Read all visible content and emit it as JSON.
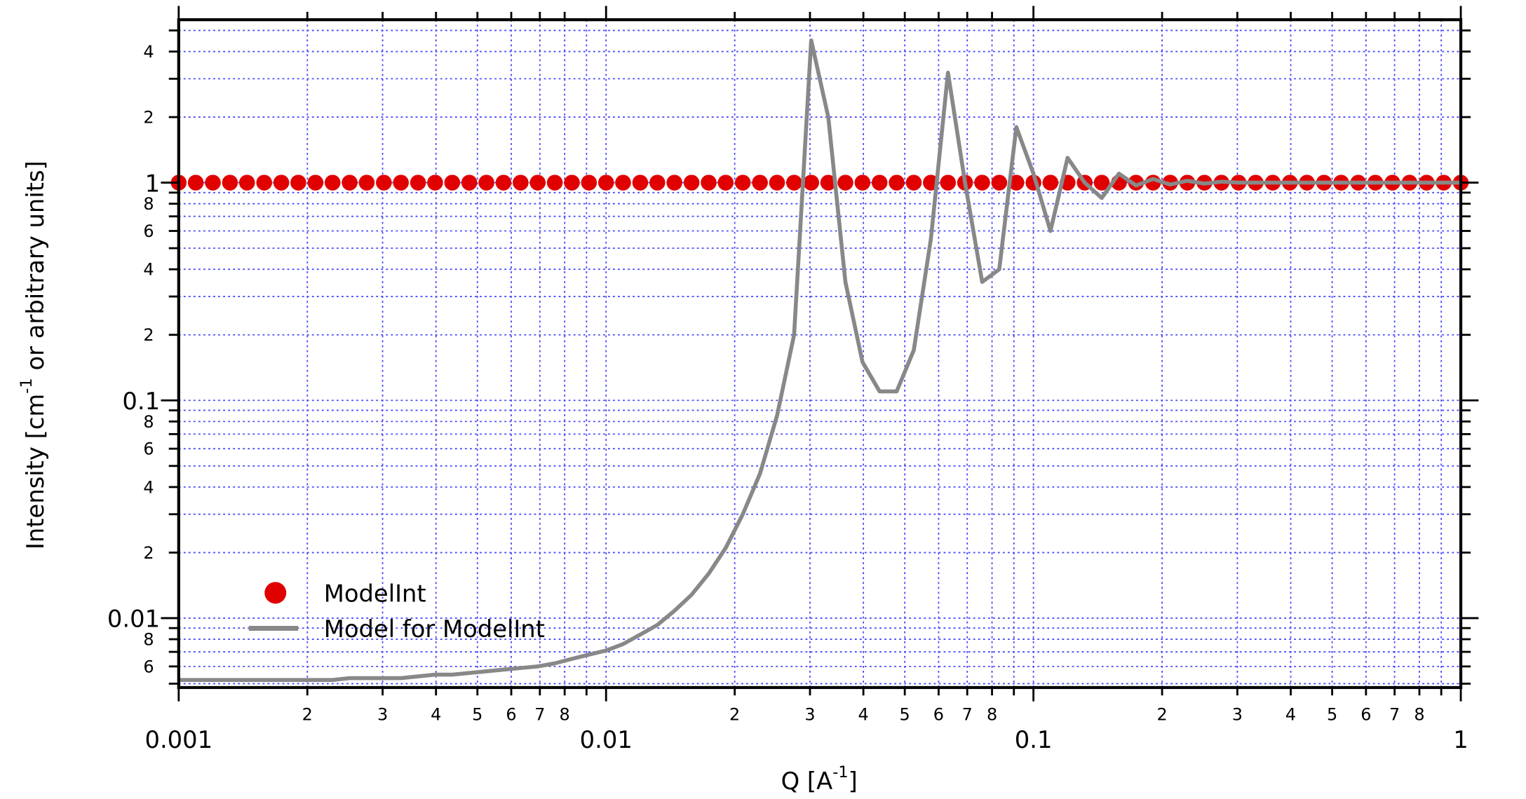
{
  "chart_data": {
    "type": "scatter-line",
    "x_label": {
      "text": "Q [A",
      "sup": "-1",
      "end": "]"
    },
    "y_label": {
      "text": "Intensity [cm",
      "sup": "-1",
      "end": " or arbitrary units]"
    },
    "log_x": true,
    "log_y": true,
    "grid": true,
    "legend": "lower left",
    "xlim": [
      0.001,
      1
    ],
    "ylim": [
      0.0048,
      5.6
    ],
    "xticks": [
      0.001,
      {
        "value": 0.002,
        "label": "2"
      },
      {
        "value": 0.003,
        "label": "3"
      },
      {
        "value": 0.004,
        "label": "4"
      },
      {
        "value": 0.005,
        "label": "5"
      },
      {
        "value": 0.006,
        "label": "6"
      },
      {
        "value": 0.007,
        "label": "7"
      },
      {
        "value": 0.008,
        "label": "8"
      },
      0.01,
      {
        "value": 0.02,
        "label": "2"
      },
      {
        "value": 0.03,
        "label": "3"
      },
      {
        "value": 0.04,
        "label": "4"
      },
      {
        "value": 0.05,
        "label": "5"
      },
      {
        "value": 0.06,
        "label": "6"
      },
      {
        "value": 0.07,
        "label": "7"
      },
      {
        "value": 0.08,
        "label": "8"
      },
      0.1,
      {
        "value": 0.2,
        "label": "2"
      },
      {
        "value": 0.3,
        "label": "3"
      },
      {
        "value": 0.4,
        "label": "4"
      },
      {
        "value": 0.5,
        "label": "5"
      },
      {
        "value": 0.6,
        "label": "6"
      },
      {
        "value": 0.7,
        "label": "7"
      },
      {
        "value": 0.8,
        "label": "8"
      },
      1
    ],
    "xticks_minor": [
      0.009,
      0.09,
      0.9
    ],
    "yticks": [
      {
        "value": 0.006,
        "label": "6"
      },
      {
        "value": 0.008,
        "label": "8"
      },
      0.01,
      {
        "value": 0.02,
        "label": "2"
      },
      {
        "value": 0.04,
        "label": "4"
      },
      {
        "value": 0.06,
        "label": "6"
      },
      {
        "value": 0.08,
        "label": "8"
      },
      0.1,
      {
        "value": 0.2,
        "label": "2"
      },
      {
        "value": 0.4,
        "label": "4"
      },
      {
        "value": 0.6,
        "label": "6"
      },
      {
        "value": 0.8,
        "label": "8"
      },
      1,
      {
        "value": 2,
        "label": "2"
      },
      {
        "value": 4,
        "label": "4"
      }
    ],
    "yticks_minor": [
      0.005,
      0.007,
      0.009,
      0.03,
      0.05,
      0.07,
      0.09,
      0.3,
      0.5,
      0.7,
      0.9,
      3,
      5
    ],
    "x": [
      0.001,
      0.001096,
      0.001202,
      0.001318,
      0.001445,
      0.001585,
      0.001738,
      0.001905,
      0.002089,
      0.002291,
      0.002512,
      0.002754,
      0.00302,
      0.003311,
      0.003631,
      0.003981,
      0.004365,
      0.004786,
      0.005248,
      0.005754,
      0.00631,
      0.006918,
      0.007586,
      0.008318,
      0.00912,
      0.01,
      0.01096,
      0.01202,
      0.01318,
      0.01445,
      0.01585,
      0.01738,
      0.01905,
      0.02089,
      0.02291,
      0.02512,
      0.02754,
      0.0302,
      0.03311,
      0.03631,
      0.03981,
      0.04365,
      0.04786,
      0.05248,
      0.05754,
      0.0631,
      0.06918,
      0.07586,
      0.08318,
      0.0912,
      0.1,
      0.1096,
      0.1202,
      0.1318,
      0.1445,
      0.1585,
      0.1738,
      0.1905,
      0.2089,
      0.2291,
      0.2512,
      0.2754,
      0.302,
      0.3311,
      0.3631,
      0.3981,
      0.4365,
      0.4786,
      0.5248,
      0.5754,
      0.631,
      0.6918,
      0.7586,
      0.8318,
      0.912,
      1
    ],
    "series": [
      {
        "name": "ModelInt",
        "kind": "markers",
        "color": "#e00000",
        "values": [
          1,
          1,
          1,
          1,
          1,
          1,
          1,
          1,
          1,
          1,
          1,
          1,
          1,
          1,
          1,
          1,
          1,
          1,
          1,
          1,
          1,
          1,
          1,
          1,
          1,
          1,
          1,
          1,
          1,
          1,
          1,
          1,
          1,
          1,
          1,
          1,
          1,
          1,
          1,
          1,
          1,
          1,
          1,
          1,
          1,
          1,
          1,
          1,
          1,
          1,
          1,
          1,
          1,
          1,
          1,
          1,
          1,
          1,
          1,
          1,
          1,
          1,
          1,
          1,
          1,
          1,
          1,
          1,
          1,
          1,
          1,
          1,
          1,
          1,
          1,
          1
        ]
      },
      {
        "name": "Model for ModelInt",
        "kind": "line",
        "color": "#888888",
        "values": [
          0.0052,
          0.0052,
          0.0052,
          0.0052,
          0.0052,
          0.0052,
          0.0052,
          0.0052,
          0.0052,
          0.0052,
          0.0053,
          0.0053,
          0.0053,
          0.0053,
          0.0054,
          0.0055,
          0.0055,
          0.0056,
          0.0057,
          0.0058,
          0.0059,
          0.006,
          0.0062,
          0.0065,
          0.0068,
          0.0071,
          0.0076,
          0.0084,
          0.0093,
          0.0108,
          0.0128,
          0.016,
          0.021,
          0.03,
          0.046,
          0.085,
          0.2,
          4.5,
          2.0,
          0.35,
          0.15,
          0.11,
          0.11,
          0.17,
          0.55,
          3.2,
          1.0,
          0.35,
          0.4,
          1.8,
          1.1,
          0.6,
          1.3,
          1.0,
          0.85,
          1.1,
          0.97,
          1.04,
          0.98,
          1.02,
          0.99,
          1.01,
          1,
          1,
          1,
          1,
          1,
          1,
          1,
          1,
          1,
          1,
          1,
          1,
          1,
          1
        ]
      }
    ]
  }
}
